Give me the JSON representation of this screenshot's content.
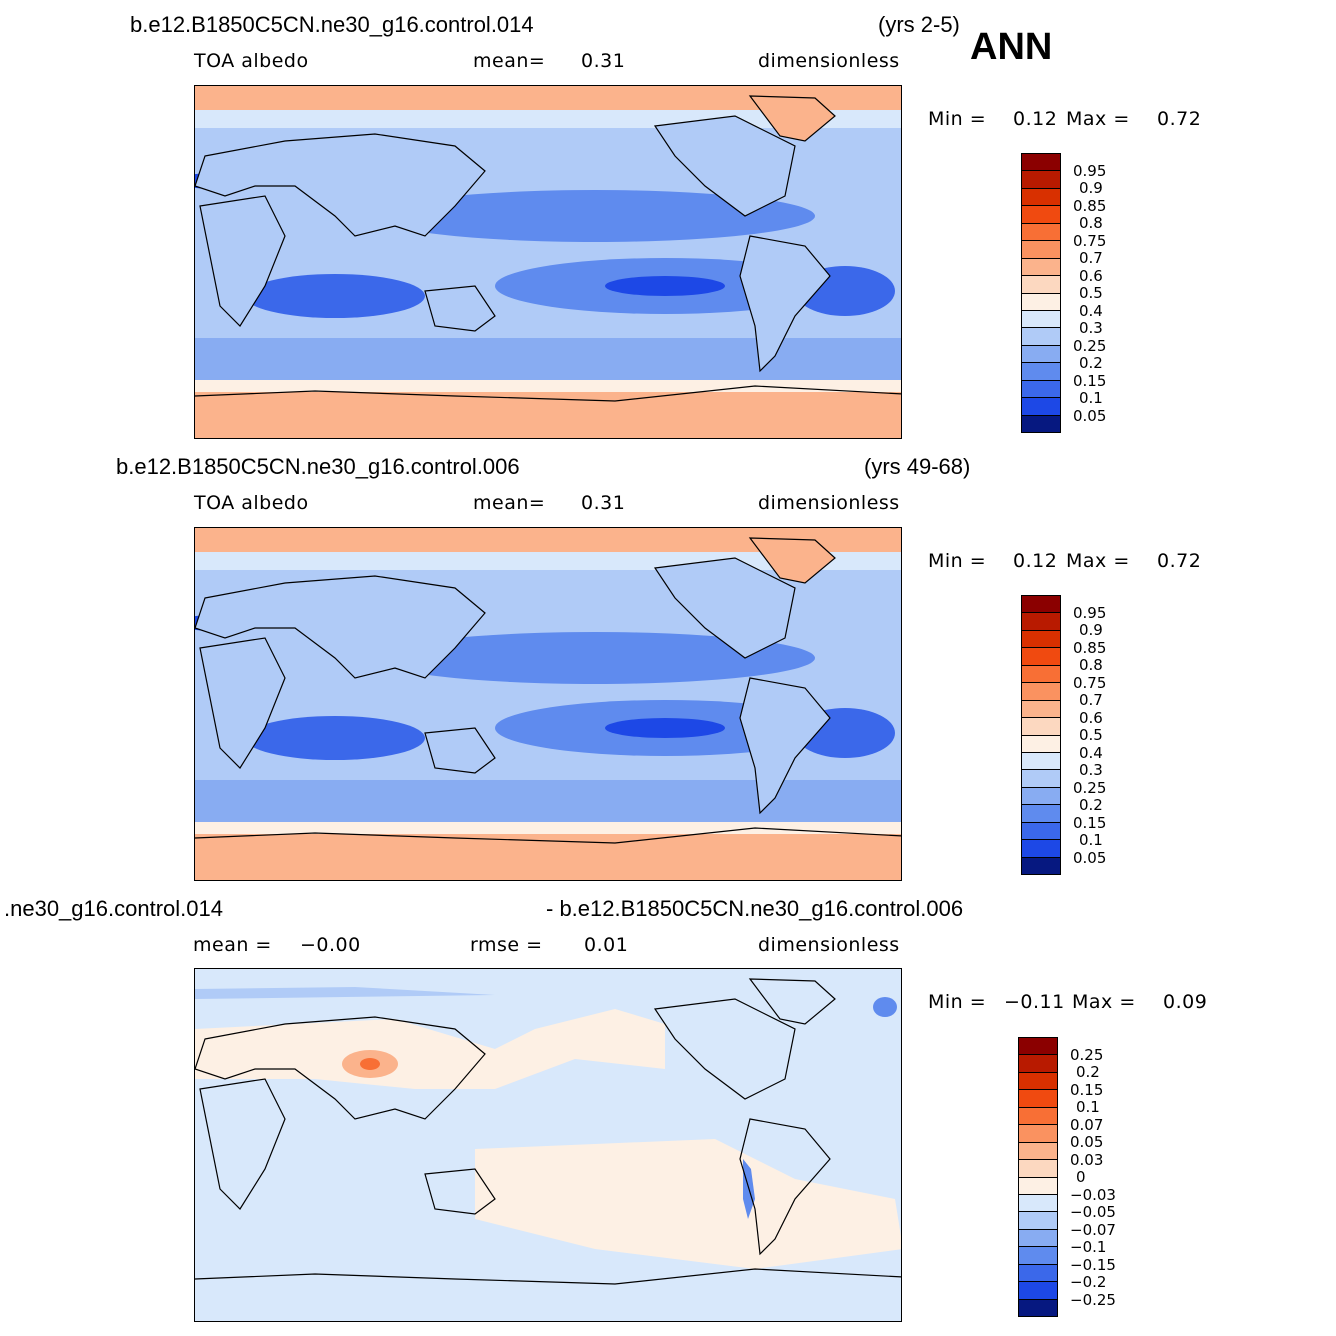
{
  "season": "ANN",
  "panels": [
    {
      "case": "b.e12.B1850C5CN.ne30_g16.control.014",
      "years": "(yrs 2-5)",
      "variable": "TOA  albedo",
      "stat1_label": "mean=",
      "stat1_value": "0.31",
      "stat2_label": "",
      "stat2_value": "",
      "units": "dimensionless",
      "min_label": "Min  =",
      "min_value": "0.12",
      "max_label": "Max  =",
      "max_value": "0.72",
      "levels": [
        "0.95",
        "0.9",
        "0.85",
        "0.8",
        "0.75",
        "0.7",
        "0.6",
        "0.5",
        "0.4",
        "0.3",
        "0.25",
        "0.2",
        "0.15",
        "0.1",
        "0.05"
      ],
      "colors": [
        "#8b0000",
        "#b81a00",
        "#d83000",
        "#f04a10",
        "#f86f35",
        "#fa9260",
        "#fbb38c",
        "#fcd8c0",
        "#fdf0e4",
        "#d8e8fb",
        "#b0cbf7",
        "#88acf2",
        "#5f8bee",
        "#3b68ea",
        "#1d48e6",
        "#0e32c8",
        "#0a22a0",
        "#061880"
      ]
    },
    {
      "case": "b.e12.B1850C5CN.ne30_g16.control.006",
      "years": "(yrs 49-68)",
      "variable": "TOA  albedo",
      "stat1_label": "mean=",
      "stat1_value": "0.31",
      "stat2_label": "",
      "stat2_value": "",
      "units": "dimensionless",
      "min_label": "Min  =",
      "min_value": "0.12",
      "max_label": "Max  =",
      "max_value": "0.72",
      "levels": [
        "0.95",
        "0.9",
        "0.85",
        "0.8",
        "0.75",
        "0.7",
        "0.6",
        "0.5",
        "0.4",
        "0.3",
        "0.25",
        "0.2",
        "0.15",
        "0.1",
        "0.05"
      ],
      "colors": [
        "#8b0000",
        "#b81a00",
        "#d83000",
        "#f04a10",
        "#f86f35",
        "#fa9260",
        "#fbb38c",
        "#fcd8c0",
        "#fdf0e4",
        "#d8e8fb",
        "#b0cbf7",
        "#88acf2",
        "#5f8bee",
        "#3b68ea",
        "#1d48e6",
        "#0e32c8",
        "#0a22a0",
        "#061880"
      ]
    },
    {
      "case_left": ".ne30_g16.control.014",
      "case_right": "- b.e12.B1850C5CN.ne30_g16.control.006",
      "stat1_label": "mean  =",
      "stat1_value": "−0.00",
      "stat2_label": "rmse  =",
      "stat2_value": "0.01",
      "units": "dimensionless",
      "min_label": "Min  =",
      "min_value": "−0.11",
      "max_label": "Max  =",
      "max_value": "0.09",
      "levels": [
        "0.25",
        "0.2",
        "0.15",
        "0.1",
        "0.07",
        "0.05",
        "0.03",
        "0",
        "−0.03",
        "−0.05",
        "−0.07",
        "−0.1",
        "−0.15",
        "−0.2",
        "−0.25"
      ],
      "colors": [
        "#8b0000",
        "#b81a00",
        "#d83000",
        "#f04a10",
        "#f86f35",
        "#fa9260",
        "#fbb38c",
        "#fcd8c0",
        "#fdf0e4",
        "#d8e8fb",
        "#b0cbf7",
        "#88acf2",
        "#5f8bee",
        "#3b68ea",
        "#1d48e6",
        "#0e32c8",
        "#0a22a0",
        "#061880"
      ]
    }
  ]
}
